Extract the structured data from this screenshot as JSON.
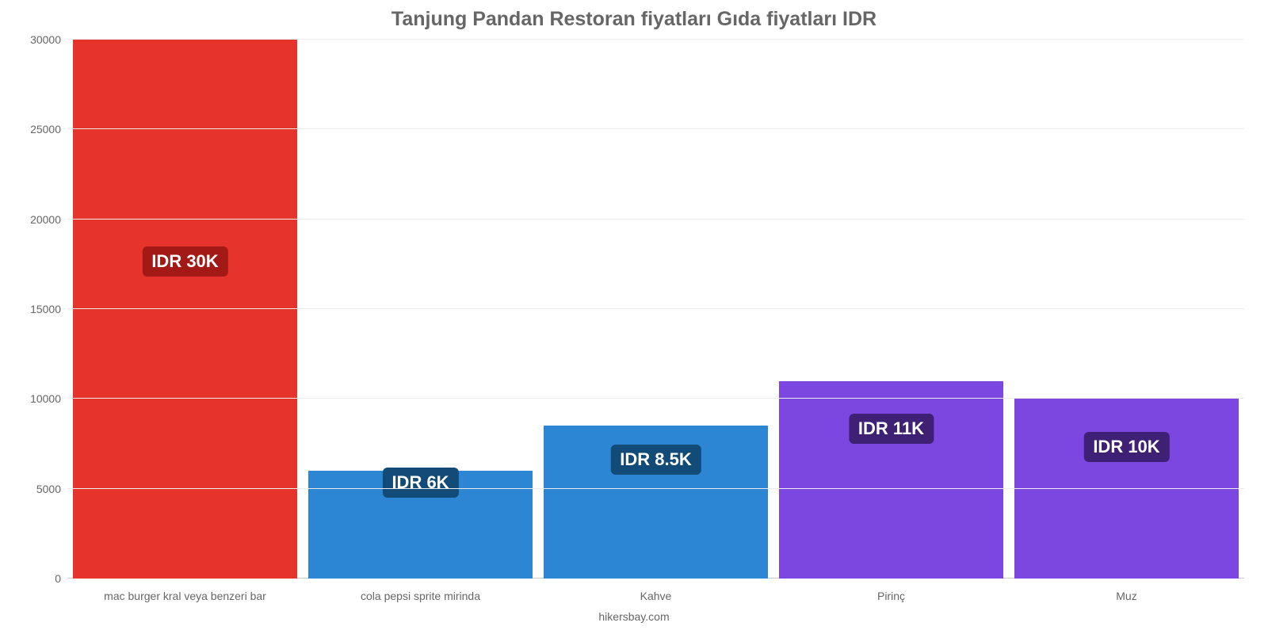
{
  "chart": {
    "type": "bar",
    "title_text": "Tanjung Pandan Restoran fiyatları Gıda fiyatları IDR",
    "title_color": "#666666",
    "title_fontsize": 25,
    "footer_text": "hikersbay.com",
    "footer_color": "#666666",
    "background_color": "#ffffff",
    "grid_color": "#ececec",
    "axis_label_color": "#666666",
    "axis_fontsize": 14,
    "y": {
      "min": 0,
      "max": 30000,
      "ticks": [
        0,
        5000,
        10000,
        15000,
        20000,
        25000,
        30000
      ],
      "tick_labels": [
        "0",
        "5000",
        "10000",
        "15000",
        "20000",
        "25000",
        "30000"
      ]
    },
    "bar_width_pct": 95,
    "bar_offset_pct": 2.5,
    "bars": [
      {
        "category": "mac burger kral veya benzeri bar",
        "value": 30000,
        "color": "#e6332c",
        "label_text": "IDR 30K",
        "label_bg": "#a31916",
        "label_pos_value": 16800
      },
      {
        "category": "cola pepsi sprite mirinda",
        "value": 6000,
        "color": "#2d86d3",
        "label_text": "IDR 6K",
        "label_bg": "#124a78",
        "label_pos_value": 4500
      },
      {
        "category": "Kahve",
        "value": 8500,
        "color": "#2d86d3",
        "label_text": "IDR 8.5K",
        "label_bg": "#124a78",
        "label_pos_value": 5800
      },
      {
        "category": "Pirinç",
        "value": 11000,
        "color": "#7c46e0",
        "label_text": "IDR 11K",
        "label_bg": "#3e2075",
        "label_pos_value": 7500
      },
      {
        "category": "Muz",
        "value": 10000,
        "color": "#7c46e0",
        "label_text": "IDR 10K",
        "label_bg": "#3e2075",
        "label_pos_value": 6500
      }
    ]
  }
}
